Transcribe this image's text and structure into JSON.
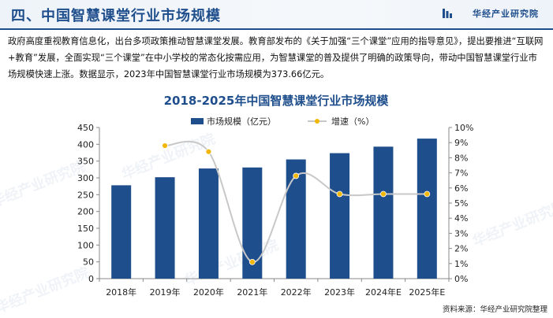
{
  "header": {
    "title": "四、中国智慧课堂行业市场规模",
    "brand": "华经产业研究院"
  },
  "intro": "政府高度重视教育信息化，出台多项政策推动智慧课堂发展。教育部发布的《关于加强“三个课堂”应用的指导意见》，提出要推进“互联网+教育”发展，全面实现“三个课堂”在中小学校的常态化按需应用，为智慧课堂的普及提供了明确的政策导向，带动中国智慧课堂行业市场规模快速上涨。数据显示，2023年中国智慧课堂行业市场规模为373.66亿元。",
  "watermark_text": "华经产业研究院",
  "source": "资料来源：华经产业研究院整理",
  "colors": {
    "bar": "#1f4e8c",
    "line": "#c8c8c8",
    "marker": "#f2b705",
    "title": "#1f4e8c",
    "accent": "#1f4e8c"
  },
  "chart_data": {
    "type": "bar",
    "title": "2018-2025年中国智慧课堂行业市场规模",
    "categories": [
      "2018年",
      "2019年",
      "2020年",
      "2021年",
      "2022年",
      "2023年",
      "2024年E",
      "2025年E"
    ],
    "series": [
      {
        "name": "市场规模（亿元）",
        "type": "bar",
        "axis": "left",
        "values": [
          278,
          302,
          328,
          331,
          355,
          373.66,
          393,
          417
        ]
      },
      {
        "name": "增速（%）",
        "type": "line",
        "axis": "right",
        "values": [
          null,
          8.8,
          8.4,
          1.1,
          6.8,
          5.6,
          5.6,
          5.6
        ]
      }
    ],
    "y_left": {
      "min": 0,
      "max": 450,
      "step": 50,
      "ticks": [
        "0",
        "50",
        "100",
        "150",
        "200",
        "250",
        "300",
        "350",
        "400",
        "450"
      ]
    },
    "y_right": {
      "min": 0,
      "max": 10,
      "step": 1,
      "ticks": [
        "0%",
        "1%",
        "2%",
        "3%",
        "4%",
        "5%",
        "6%",
        "7%",
        "8%",
        "9%",
        "10%"
      ]
    },
    "legend_position": "top-center",
    "grid": false
  }
}
